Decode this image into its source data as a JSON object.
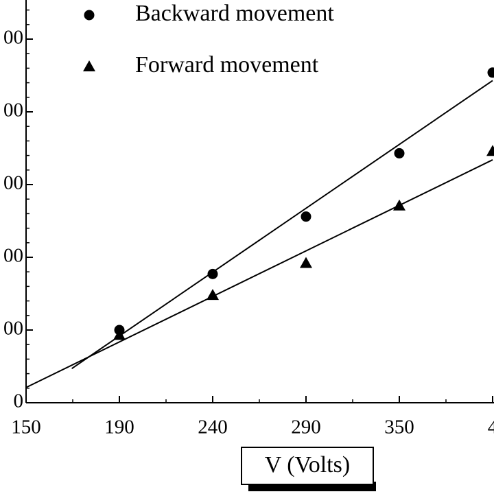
{
  "chart_data": {
    "type": "scatter",
    "xlabel": "V (Volts)",
    "categories": [
      "150",
      "190",
      "240",
      "290",
      "350",
      "4"
    ],
    "ylim": [
      0,
      5.55
    ],
    "yticks": [
      {
        "value": 0,
        "label": "0"
      },
      {
        "value": 1,
        "label": "00"
      },
      {
        "value": 2,
        "label": "00"
      },
      {
        "value": 3,
        "label": "00"
      },
      {
        "value": 4,
        "label": "00"
      },
      {
        "value": 5,
        "label": "00"
      }
    ],
    "series": [
      {
        "name": "Backward movement",
        "marker": "circle",
        "color": "#000000",
        "values": [
          null,
          1.0,
          1.77,
          2.56,
          3.43,
          4.54
        ],
        "fit": {
          "x": [
            0.49,
            5.0
          ],
          "values": [
            0.47,
            4.43
          ]
        }
      },
      {
        "name": "Forward movement",
        "marker": "triangle",
        "color": "#000000",
        "values": [
          null,
          0.93,
          1.48,
          1.92,
          2.71,
          3.46
        ],
        "fit": {
          "x": [
            0.0,
            5.0
          ],
          "values": [
            0.21,
            3.34
          ]
        }
      }
    ]
  }
}
